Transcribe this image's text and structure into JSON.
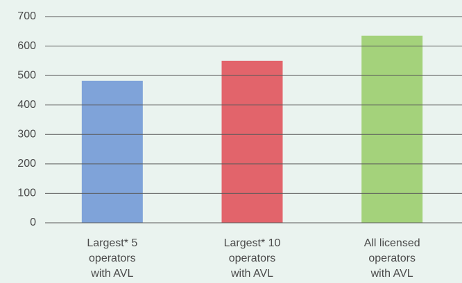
{
  "chart_data": {
    "type": "bar",
    "categories": [
      [
        "Largest* 5",
        "operators",
        "with AVL"
      ],
      [
        "Largest* 10",
        "operators",
        "with AVL"
      ],
      [
        "All licensed",
        "operators",
        "with AVL"
      ]
    ],
    "values": [
      482,
      550,
      635
    ],
    "colors": [
      "#7fa3d9",
      "#e2646b",
      "#a4d27b"
    ],
    "ylim": [
      0,
      700
    ],
    "yticks": [
      0,
      100,
      200,
      300,
      400,
      500,
      600,
      700
    ],
    "grid": true
  }
}
